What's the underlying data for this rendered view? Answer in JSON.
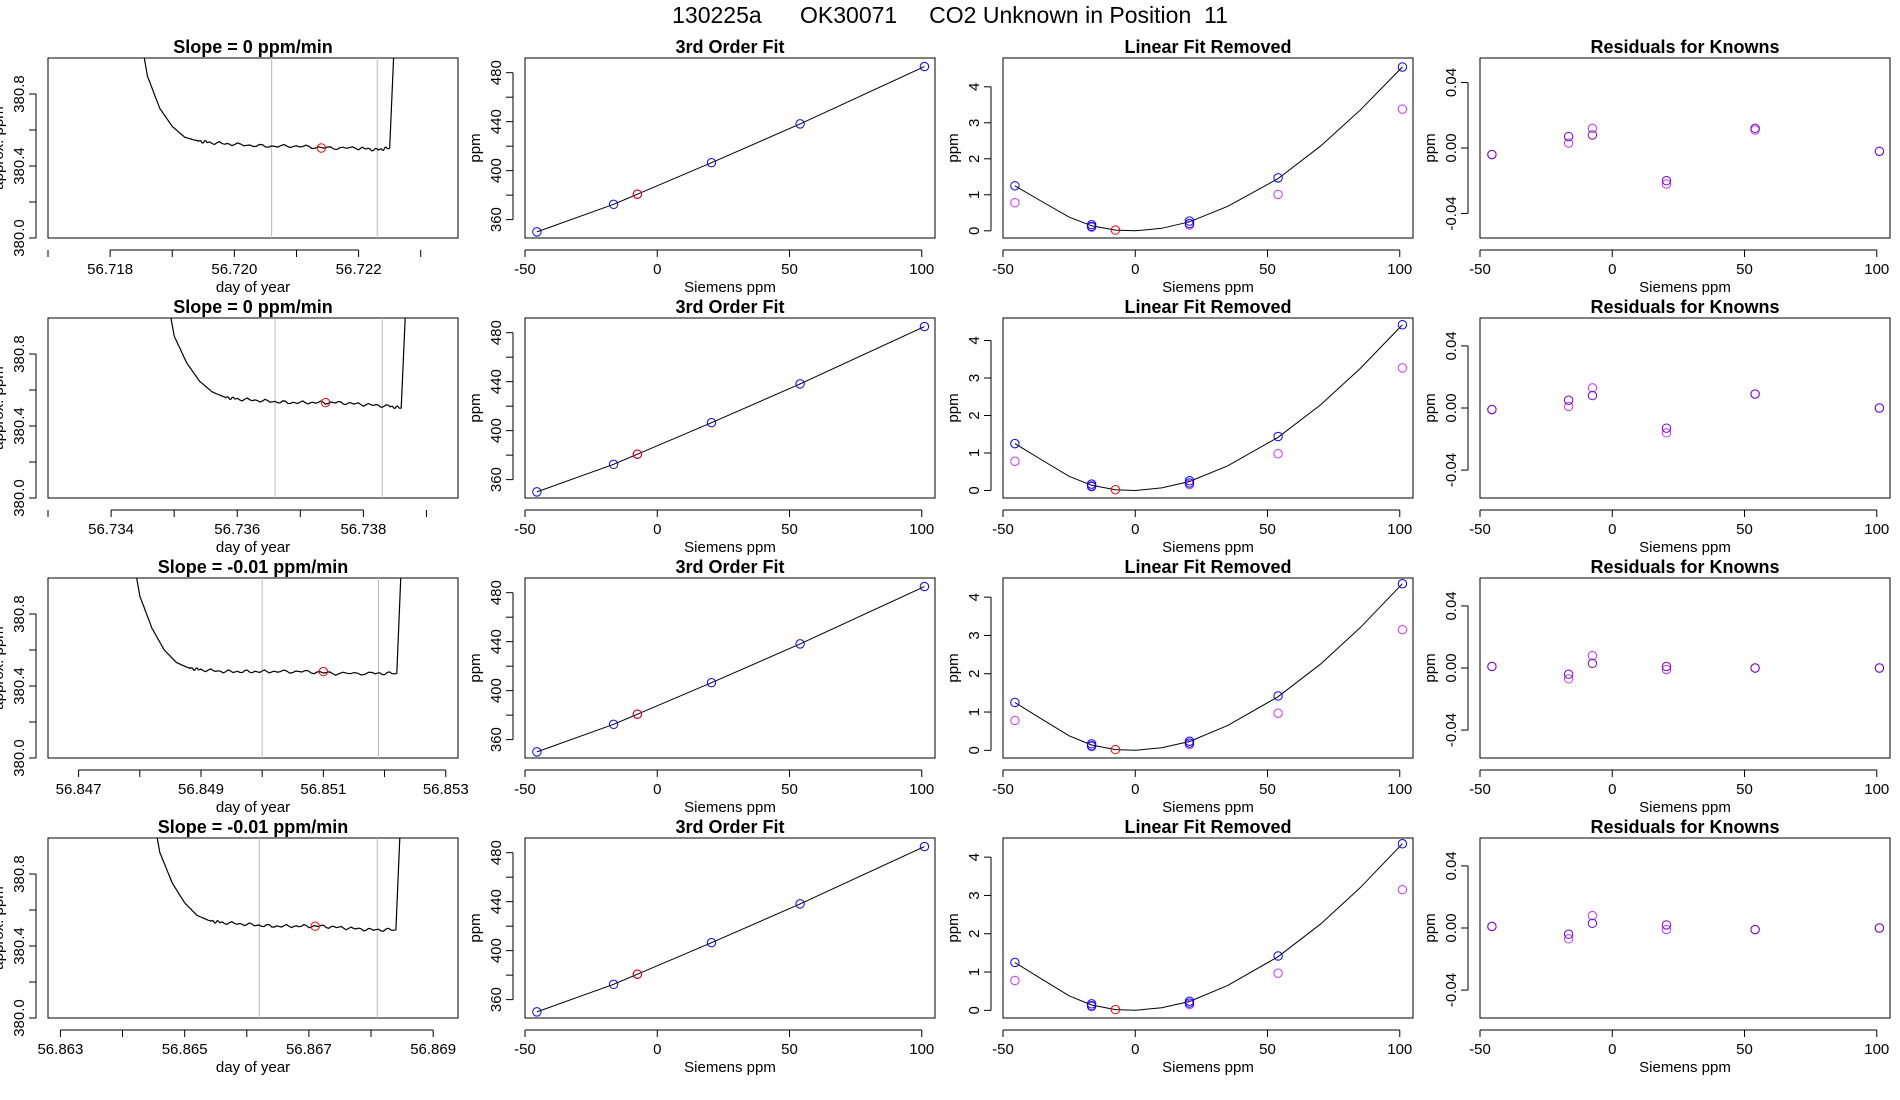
{
  "page_title": {
    "run": "130225a",
    "tank": "OK30071",
    "description": "CO2 Unknown in Position  11"
  },
  "colors": {
    "line": "#000000",
    "known_points": "#0000ff",
    "alt_points": "#cc33ff",
    "unknown_point": "#ff0000",
    "window_lines": "#bbbbbb",
    "residual_points": "#7700cc"
  },
  "chart_data": [
    {
      "type": "line",
      "panel": "trace",
      "title": "Slope =  0  ppm/min",
      "xlabel": "day of year",
      "ylabel": "approx. ppm",
      "xlim": [
        56.717,
        56.7236
      ],
      "ylim": [
        380.0,
        381.0
      ],
      "xticks": [
        "56.718",
        "56.720",
        "56.722"
      ],
      "xtick_values": [
        56.718,
        56.72,
        56.722
      ],
      "yticks": [
        "380.0",
        "380.4",
        "380.8"
      ],
      "ytick_values": [
        380.0,
        380.4,
        380.8
      ],
      "window": [
        56.7206,
        56.7223
      ],
      "x": [
        56.7184,
        56.7186,
        56.7188,
        56.719,
        56.7192,
        56.7194,
        56.7196,
        56.72,
        56.7205,
        56.721,
        56.7215,
        56.722,
        56.7223,
        56.7225,
        56.7226
      ],
      "y": [
        381.3,
        380.9,
        380.72,
        380.62,
        380.56,
        380.54,
        380.53,
        380.52,
        380.51,
        380.51,
        380.5,
        380.5,
        380.49,
        380.5,
        381.3
      ],
      "unknown": {
        "x": 56.7214,
        "y": 380.5
      }
    },
    {
      "type": "scatter",
      "panel": "fit",
      "title": "3rd Order Fit",
      "xlabel": "Siemens ppm",
      "ylabel": "ppm",
      "xlim": [
        -50,
        105
      ],
      "ylim": [
        345,
        492
      ],
      "xticks": [
        "-50",
        "0",
        "50",
        "100"
      ],
      "xtick_values": [
        -50,
        0,
        50,
        100
      ],
      "yticks": [
        "360",
        "400",
        "440",
        "480"
      ],
      "ytick_values": [
        360,
        400,
        440,
        480
      ],
      "known_x": [
        -45.5,
        -16.5,
        -7.5,
        20.5,
        54,
        101
      ],
      "known_y": [
        350,
        372.5,
        380.8,
        406.5,
        438.2,
        485
      ],
      "unknown": {
        "x": -7.5,
        "y": 380.8
      }
    },
    {
      "type": "scatter",
      "panel": "linear_removed",
      "title": "Linear Fit Removed",
      "xlabel": "Siemens ppm",
      "ylabel": "ppm",
      "xlim": [
        -50,
        105
      ],
      "ylim": [
        -0.2,
        4.8
      ],
      "xticks": [
        "-50",
        "0",
        "50",
        "100"
      ],
      "xtick_values": [
        -50,
        0,
        50,
        100
      ],
      "yticks": [
        "0",
        "1",
        "2",
        "3",
        "4"
      ],
      "ytick_values": [
        0,
        1,
        2,
        3,
        4
      ],
      "curve_x": [
        -45.5,
        -35,
        -25,
        -16.5,
        -7.5,
        0,
        10,
        20.5,
        35,
        54,
        70,
        85,
        101
      ],
      "curve_y": [
        1.25,
        0.8,
        0.38,
        0.14,
        0.02,
        0.0,
        0.07,
        0.25,
        0.68,
        1.45,
        2.35,
        3.35,
        4.55
      ],
      "known_x": [
        -45.5,
        -16.5,
        -16.5,
        20.5,
        20.5,
        54,
        101
      ],
      "known_y": [
        1.25,
        0.17,
        0.12,
        0.27,
        0.2,
        1.47,
        4.55
      ],
      "alt_x": [
        -45.5,
        -16.5,
        20.5,
        54,
        101
      ],
      "alt_y": [
        0.78,
        0.1,
        0.16,
        1.01,
        3.38
      ],
      "unknown": {
        "x": -7.5,
        "y": 0.02
      }
    },
    {
      "type": "scatter",
      "panel": "residuals",
      "title": "Residuals for Knowns",
      "xlabel": "Siemens ppm",
      "ylabel": "ppm",
      "xlim": [
        -50,
        105
      ],
      "ylim": [
        -0.055,
        0.055
      ],
      "xticks": [
        "-50",
        "0",
        "50",
        "100"
      ],
      "xtick_values": [
        -50,
        0,
        50,
        100
      ],
      "yticks": [
        "-0.04",
        "0.00",
        "0.04"
      ],
      "ytick_values": [
        -0.04,
        0.0,
        0.04
      ],
      "known_x": [
        -45.5,
        -16.5,
        -7.5,
        20.5,
        54,
        101
      ],
      "known_y": [
        -0.004,
        0.007,
        0.008,
        -0.02,
        0.012,
        -0.002
      ],
      "alt_x": [
        -45.5,
        -16.5,
        -7.5,
        20.5,
        54,
        101
      ],
      "alt_y": [
        -0.004,
        0.003,
        0.012,
        -0.022,
        0.011,
        -0.002
      ]
    },
    {
      "type": "line",
      "panel": "trace",
      "title": "Slope =  0  ppm/min",
      "xlabel": "day of year",
      "ylabel": "approx. ppm",
      "xlim": [
        56.733,
        56.7395
      ],
      "ylim": [
        380.0,
        381.0
      ],
      "xticks": [
        "56.734",
        "56.736",
        "56.738"
      ],
      "xtick_values": [
        56.734,
        56.736,
        56.738
      ],
      "yticks": [
        "380.0",
        "380.4",
        "380.8"
      ],
      "ytick_values": [
        380.0,
        380.4,
        380.8
      ],
      "window": [
        56.7366,
        56.7383
      ],
      "x": [
        56.7348,
        56.735,
        56.7352,
        56.7354,
        56.7356,
        56.7358,
        56.736,
        56.7364,
        56.7368,
        56.7372,
        56.7376,
        56.738,
        56.7384,
        56.7386,
        56.7387
      ],
      "y": [
        381.3,
        380.9,
        380.75,
        380.65,
        380.59,
        380.56,
        380.55,
        380.54,
        380.53,
        380.53,
        380.53,
        380.52,
        380.51,
        380.5,
        381.3
      ],
      "unknown": {
        "x": 56.7374,
        "y": 380.53
      }
    },
    {
      "type": "scatter",
      "panel": "fit",
      "title": "3rd Order Fit",
      "xlabel": "Siemens ppm",
      "ylabel": "ppm",
      "xlim": [
        -50,
        105
      ],
      "ylim": [
        345,
        492
      ],
      "xticks": [
        "-50",
        "0",
        "50",
        "100"
      ],
      "xtick_values": [
        -50,
        0,
        50,
        100
      ],
      "yticks": [
        "360",
        "400",
        "440",
        "480"
      ],
      "ytick_values": [
        360,
        400,
        440,
        480
      ],
      "known_x": [
        -45.5,
        -16.5,
        -7.5,
        20.5,
        54,
        101
      ],
      "known_y": [
        350,
        372.5,
        380.8,
        406.5,
        438.2,
        485
      ],
      "unknown": {
        "x": -7.5,
        "y": 380.8
      }
    },
    {
      "type": "scatter",
      "panel": "linear_removed",
      "title": "Linear Fit Removed",
      "xlabel": "Siemens ppm",
      "ylabel": "ppm",
      "xlim": [
        -50,
        105
      ],
      "ylim": [
        -0.2,
        4.6
      ],
      "xticks": [
        "-50",
        "0",
        "50",
        "100"
      ],
      "xtick_values": [
        -50,
        0,
        50,
        100
      ],
      "yticks": [
        "0",
        "1",
        "2",
        "3",
        "4"
      ],
      "ytick_values": [
        0,
        1,
        2,
        3,
        4
      ],
      "curve_x": [
        -45.5,
        -35,
        -25,
        -16.5,
        -7.5,
        0,
        10,
        20.5,
        35,
        54,
        70,
        85,
        101
      ],
      "curve_y": [
        1.25,
        0.8,
        0.38,
        0.14,
        0.02,
        0.0,
        0.07,
        0.24,
        0.66,
        1.42,
        2.28,
        3.25,
        4.42
      ],
      "known_x": [
        -45.5,
        -16.5,
        -16.5,
        20.5,
        20.5,
        54,
        101
      ],
      "known_y": [
        1.25,
        0.17,
        0.12,
        0.26,
        0.2,
        1.44,
        4.42
      ],
      "alt_x": [
        -45.5,
        -16.5,
        20.5,
        54,
        101
      ],
      "alt_y": [
        0.78,
        0.1,
        0.16,
        0.98,
        3.27
      ],
      "unknown": {
        "x": -7.5,
        "y": 0.02
      }
    },
    {
      "type": "scatter",
      "panel": "residuals",
      "title": "Residuals for Knowns",
      "xlabel": "Siemens ppm",
      "ylabel": "ppm",
      "xlim": [
        -50,
        105
      ],
      "ylim": [
        -0.058,
        0.058
      ],
      "xticks": [
        "-50",
        "0",
        "50",
        "100"
      ],
      "xtick_values": [
        -50,
        0,
        50,
        100
      ],
      "yticks": [
        "-0.04",
        "0.00",
        "0.04"
      ],
      "ytick_values": [
        -0.04,
        0.0,
        0.04
      ],
      "known_x": [
        -45.5,
        -16.5,
        -7.5,
        20.5,
        54,
        101
      ],
      "known_y": [
        -0.001,
        0.005,
        0.008,
        -0.013,
        0.009,
        0.0
      ],
      "alt_x": [
        -45.5,
        -16.5,
        -7.5,
        20.5,
        54,
        101
      ],
      "alt_y": [
        -0.001,
        0.001,
        0.013,
        -0.016,
        0.009,
        0.0
      ]
    },
    {
      "type": "line",
      "panel": "trace",
      "title": "Slope =  -0.01  ppm/min",
      "xlabel": "day of year",
      "ylabel": "approx. ppm",
      "xlim": [
        56.8465,
        56.8532
      ],
      "ylim": [
        380.0,
        381.0
      ],
      "xticks": [
        "56.847",
        "56.849",
        "56.851",
        "56.853"
      ],
      "xtick_values": [
        56.847,
        56.849,
        56.851,
        56.853
      ],
      "yticks": [
        "380.0",
        "380.4",
        "380.8"
      ],
      "ytick_values": [
        380.0,
        380.4,
        380.8
      ],
      "window": [
        56.85,
        56.8519
      ],
      "x": [
        56.8478,
        56.848,
        56.8482,
        56.8484,
        56.8486,
        56.8488,
        56.849,
        56.8494,
        56.8498,
        56.8502,
        56.8507,
        56.8512,
        56.8518,
        56.8522,
        56.8523
      ],
      "y": [
        381.3,
        380.9,
        380.72,
        380.6,
        380.53,
        380.5,
        380.49,
        380.48,
        380.48,
        380.48,
        380.48,
        380.47,
        380.47,
        380.47,
        381.3
      ],
      "unknown": {
        "x": 56.851,
        "y": 380.48
      }
    },
    {
      "type": "scatter",
      "panel": "fit",
      "title": "3rd Order Fit",
      "xlabel": "Siemens ppm",
      "ylabel": "ppm",
      "xlim": [
        -50,
        105
      ],
      "ylim": [
        345,
        492
      ],
      "xticks": [
        "-50",
        "0",
        "50",
        "100"
      ],
      "xtick_values": [
        -50,
        0,
        50,
        100
      ],
      "yticks": [
        "360",
        "400",
        "440",
        "480"
      ],
      "ytick_values": [
        360,
        400,
        440,
        480
      ],
      "known_x": [
        -45.5,
        -16.5,
        -7.5,
        20.5,
        54,
        101
      ],
      "known_y": [
        350,
        372.5,
        380.8,
        406.5,
        438.2,
        485
      ],
      "unknown": {
        "x": -7.5,
        "y": 380.8
      }
    },
    {
      "type": "scatter",
      "panel": "linear_removed",
      "title": "Linear Fit Removed",
      "xlabel": "Siemens ppm",
      "ylabel": "ppm",
      "xlim": [
        -50,
        105
      ],
      "ylim": [
        -0.2,
        4.5
      ],
      "xticks": [
        "-50",
        "0",
        "50",
        "100"
      ],
      "xtick_values": [
        -50,
        0,
        50,
        100
      ],
      "yticks": [
        "0",
        "1",
        "2",
        "3",
        "4"
      ],
      "ytick_values": [
        0,
        1,
        2,
        3,
        4
      ],
      "curve_x": [
        -45.5,
        -35,
        -25,
        -16.5,
        -7.5,
        0,
        10,
        20.5,
        35,
        54,
        70,
        85,
        101
      ],
      "curve_y": [
        1.25,
        0.8,
        0.38,
        0.14,
        0.02,
        0.0,
        0.07,
        0.23,
        0.65,
        1.4,
        2.25,
        3.2,
        4.35
      ],
      "known_x": [
        -45.5,
        -16.5,
        -16.5,
        20.5,
        20.5,
        54,
        101
      ],
      "known_y": [
        1.25,
        0.17,
        0.12,
        0.24,
        0.19,
        1.42,
        4.35
      ],
      "alt_x": [
        -45.5,
        -16.5,
        20.5,
        54,
        101
      ],
      "alt_y": [
        0.78,
        0.1,
        0.15,
        0.97,
        3.15
      ],
      "unknown": {
        "x": -7.5,
        "y": 0.02
      }
    },
    {
      "type": "scatter",
      "panel": "residuals",
      "title": "Residuals for Knowns",
      "xlabel": "Siemens ppm",
      "ylabel": "ppm",
      "xlim": [
        -50,
        105
      ],
      "ylim": [
        -0.058,
        0.058
      ],
      "xticks": [
        "-50",
        "0",
        "50",
        "100"
      ],
      "xtick_values": [
        -50,
        0,
        50,
        100
      ],
      "yticks": [
        "-0.04",
        "0.00",
        "0.04"
      ],
      "ytick_values": [
        -0.04,
        0.0,
        0.04
      ],
      "known_x": [
        -45.5,
        -16.5,
        -7.5,
        20.5,
        54,
        101
      ],
      "known_y": [
        0.001,
        -0.004,
        0.003,
        0.001,
        0.0,
        0.0
      ],
      "alt_x": [
        -45.5,
        -16.5,
        -7.5,
        20.5,
        54,
        101
      ],
      "alt_y": [
        0.001,
        -0.007,
        0.008,
        -0.001,
        0.0,
        0.0
      ]
    },
    {
      "type": "line",
      "panel": "trace",
      "title": "Slope =  -0.01  ppm/min",
      "xlabel": "day of year",
      "ylabel": "approx. ppm",
      "xlim": [
        56.8628,
        56.8694
      ],
      "ylim": [
        380.0,
        381.0
      ],
      "xticks": [
        "56.863",
        "56.865",
        "56.867",
        "56.869"
      ],
      "xtick_values": [
        56.863,
        56.865,
        56.867,
        56.869
      ],
      "yticks": [
        "380.0",
        "380.4",
        "380.8"
      ],
      "ytick_values": [
        380.0,
        380.4,
        380.8
      ],
      "window": [
        56.8662,
        56.8681
      ],
      "x": [
        56.8644,
        56.8646,
        56.8648,
        56.865,
        56.8652,
        56.8654,
        56.8656,
        56.866,
        56.8664,
        56.8668,
        56.8672,
        56.8676,
        56.868,
        56.8684,
        56.8685
      ],
      "y": [
        381.3,
        380.92,
        380.75,
        380.64,
        380.57,
        380.54,
        380.53,
        380.52,
        380.51,
        380.51,
        380.51,
        380.5,
        380.49,
        380.49,
        381.3
      ],
      "unknown": {
        "x": 56.8671,
        "y": 380.51
      }
    },
    {
      "type": "scatter",
      "panel": "fit",
      "title": "3rd Order Fit",
      "xlabel": "Siemens ppm",
      "ylabel": "ppm",
      "xlim": [
        -50,
        105
      ],
      "ylim": [
        345,
        492
      ],
      "xticks": [
        "-50",
        "0",
        "50",
        "100"
      ],
      "xtick_values": [
        -50,
        0,
        50,
        100
      ],
      "yticks": [
        "360",
        "400",
        "440",
        "480"
      ],
      "ytick_values": [
        360,
        400,
        440,
        480
      ],
      "known_x": [
        -45.5,
        -16.5,
        -7.5,
        20.5,
        54,
        101
      ],
      "known_y": [
        350,
        372.5,
        380.8,
        406.5,
        438.2,
        485
      ],
      "unknown": {
        "x": -7.5,
        "y": 380.8
      }
    },
    {
      "type": "scatter",
      "panel": "linear_removed",
      "title": "Linear Fit Removed",
      "xlabel": "Siemens ppm",
      "ylabel": "ppm",
      "xlim": [
        -50,
        105
      ],
      "ylim": [
        -0.2,
        4.5
      ],
      "xticks": [
        "-50",
        "0",
        "50",
        "100"
      ],
      "xtick_values": [
        -50,
        0,
        50,
        100
      ],
      "yticks": [
        "0",
        "1",
        "2",
        "3",
        "4"
      ],
      "ytick_values": [
        0,
        1,
        2,
        3,
        4
      ],
      "curve_x": [
        -45.5,
        -35,
        -25,
        -16.5,
        -7.5,
        0,
        10,
        20.5,
        35,
        54,
        70,
        85,
        101
      ],
      "curve_y": [
        1.25,
        0.8,
        0.38,
        0.14,
        0.02,
        0.0,
        0.07,
        0.23,
        0.65,
        1.4,
        2.25,
        3.2,
        4.35
      ],
      "known_x": [
        -45.5,
        -16.5,
        -16.5,
        20.5,
        20.5,
        54,
        101
      ],
      "known_y": [
        1.25,
        0.17,
        0.12,
        0.24,
        0.19,
        1.42,
        4.35
      ],
      "alt_x": [
        -45.5,
        -16.5,
        20.5,
        54,
        101
      ],
      "alt_y": [
        0.78,
        0.1,
        0.15,
        0.97,
        3.15
      ],
      "unknown": {
        "x": -7.5,
        "y": 0.02
      }
    },
    {
      "type": "scatter",
      "panel": "residuals",
      "title": "Residuals for Knowns",
      "xlabel": "Siemens ppm",
      "ylabel": "ppm",
      "xlim": [
        -50,
        105
      ],
      "ylim": [
        -0.058,
        0.058
      ],
      "xticks": [
        "-50",
        "0",
        "50",
        "100"
      ],
      "xtick_values": [
        -50,
        0,
        50,
        100
      ],
      "yticks": [
        "-0.04",
        "0.00",
        "0.04"
      ],
      "ytick_values": [
        -0.04,
        0.0,
        0.04
      ],
      "known_x": [
        -45.5,
        -16.5,
        -7.5,
        20.5,
        54,
        101
      ],
      "known_y": [
        0.001,
        -0.004,
        0.003,
        0.002,
        -0.001,
        0.0
      ],
      "alt_x": [
        -45.5,
        -16.5,
        -7.5,
        20.5,
        54,
        101
      ],
      "alt_y": [
        0.001,
        -0.007,
        0.008,
        -0.001,
        -0.001,
        0.0
      ]
    }
  ]
}
